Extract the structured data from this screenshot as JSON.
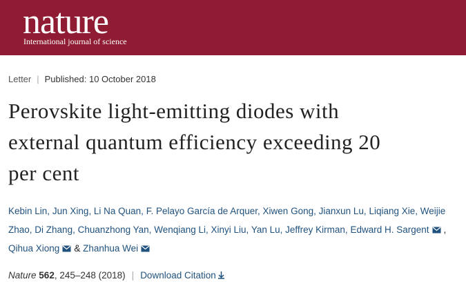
{
  "header": {
    "logo": "nature",
    "tagline": "International journal of science"
  },
  "article": {
    "type": "Letter",
    "published": "Published: 10 October 2018",
    "title_lines": [
      "Perovskite light-emitting diodes with",
      "external quantum efficiency exceeding 20",
      "per cent"
    ],
    "authors": [
      {
        "name": "Kebin Lin,",
        "corresponding": false
      },
      {
        "name": "Jun Xing,",
        "corresponding": false
      },
      {
        "name": "Li Na Quan,",
        "corresponding": false
      },
      {
        "name": "F. Pelayo García de Arquer,",
        "corresponding": false
      },
      {
        "name": "Xiwen Gong,",
        "corresponding": false
      },
      {
        "name": "Jianxun Lu,",
        "corresponding": false
      },
      {
        "name": "Liqiang Xie,",
        "corresponding": false
      },
      {
        "name": "Weijie Zhao,",
        "corresponding": false
      },
      {
        "name": "Di Zhang,",
        "corresponding": false
      },
      {
        "name": "Chuanzhong Yan,",
        "corresponding": false
      },
      {
        "name": "Wenqiang Li,",
        "corresponding": false
      },
      {
        "name": "Xinyi Liu,",
        "corresponding": false
      },
      {
        "name": "Yan Lu,",
        "corresponding": false
      },
      {
        "name": "Jeffrey Kirman,",
        "corresponding": false
      },
      {
        "name": "Edward H. Sargent",
        "corresponding": true
      },
      {
        "name": "Qihua Xiong",
        "corresponding": true
      },
      {
        "name": "Zhanhua Wei",
        "corresponding": true
      }
    ],
    "author_separator": ",",
    "last_author_joiner": "&",
    "citation": {
      "journal": "Nature",
      "volume": "562",
      "pages": ", 245–248 (2018)",
      "download": "Download Citation"
    }
  }
}
